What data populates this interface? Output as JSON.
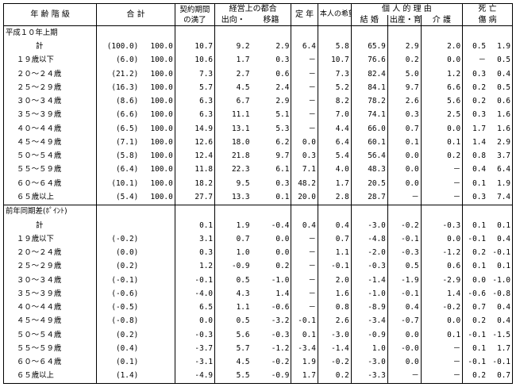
{
  "header": {
    "age_class": "年 齢 階 級",
    "total": "合    計",
    "contract_end": "契約期間の満了",
    "business": "経営上の都合",
    "business_sub1": "出向・",
    "business_sub2": "移籍",
    "retire": "定 年",
    "self_request": "本人の希望",
    "personal": "個 人 的 理 由",
    "marriage": "結 婚",
    "childbirth": "出産・育児",
    "care": "介 護",
    "death": "死 亡",
    "injury": "傷 病"
  },
  "section1": {
    "title": "平成１０年上期",
    "rows": [
      {
        "label": "計",
        "share": "(100.0)",
        "total": "100.0",
        "c1": "10.7",
        "c2": "9.2",
        "c3": "2.9",
        "c4": "6.4",
        "c5": "5.8",
        "c6": "65.9",
        "c7": "2.9",
        "c8": "2.0",
        "c9": "0.5",
        "c10": "1.9"
      },
      {
        "label": "１９歳以下",
        "share": "(6.0)",
        "total": "100.0",
        "c1": "10.6",
        "c2": "1.7",
        "c3": "0.3",
        "c4": "－",
        "c5": "10.7",
        "c6": "76.6",
        "c7": "0.2",
        "c8": "0.0",
        "c9": "－",
        "c10": "0.5"
      },
      {
        "label": "２０～２４歳",
        "share": "(21.2)",
        "total": "100.0",
        "c1": "7.3",
        "c2": "2.7",
        "c3": "0.6",
        "c4": "－",
        "c5": "7.3",
        "c6": "82.4",
        "c7": "5.0",
        "c8": "1.2",
        "c9": "0.3",
        "c10": "0.4"
      },
      {
        "label": "２５～２９歳",
        "share": "(16.3)",
        "total": "100.0",
        "c1": "5.7",
        "c2": "4.5",
        "c3": "2.4",
        "c4": "－",
        "c5": "5.2",
        "c6": "84.1",
        "c7": "9.7",
        "c8": "6.6",
        "c9": "0.2",
        "c10": "0.5"
      },
      {
        "label": "３０～３４歳",
        "share": "(8.6)",
        "total": "100.0",
        "c1": "6.3",
        "c2": "6.7",
        "c3": "2.9",
        "c4": "－",
        "c5": "8.2",
        "c6": "78.2",
        "c7": "2.6",
        "c8": "5.6",
        "c9": "0.2",
        "c10": "0.6"
      },
      {
        "label": "３５～３９歳",
        "share": "(6.6)",
        "total": "100.0",
        "c1": "6.3",
        "c2": "11.1",
        "c3": "5.1",
        "c4": "－",
        "c5": "7.0",
        "c6": "74.1",
        "c7": "0.3",
        "c8": "2.5",
        "c9": "0.3",
        "c10": "1.6"
      },
      {
        "label": "４０～４４歳",
        "share": "(6.5)",
        "total": "100.0",
        "c1": "14.9",
        "c2": "13.1",
        "c3": "5.3",
        "c4": "－",
        "c5": "4.4",
        "c6": "66.0",
        "c7": "0.7",
        "c8": "0.0",
        "c9": "1.7",
        "c10": "1.6"
      },
      {
        "label": "４５～４９歳",
        "share": "(7.1)",
        "total": "100.0",
        "c1": "12.6",
        "c2": "18.0",
        "c3": "6.2",
        "c4": "0.0",
        "c5": "6.4",
        "c6": "60.1",
        "c7": "0.1",
        "c8": "0.1",
        "c9": "1.4",
        "c10": "2.9"
      },
      {
        "label": "５０～５４歳",
        "share": "(5.8)",
        "total": "100.0",
        "c1": "12.4",
        "c2": "21.8",
        "c3": "9.7",
        "c4": "0.3",
        "c5": "5.4",
        "c6": "56.4",
        "c7": "0.0",
        "c8": "0.2",
        "c9": "0.8",
        "c10": "3.7"
      },
      {
        "label": "５５～５９歳",
        "share": "(6.4)",
        "total": "100.0",
        "c1": "11.8",
        "c2": "22.3",
        "c3": "6.1",
        "c4": "7.1",
        "c5": "4.0",
        "c6": "48.3",
        "c7": "0.0",
        "c8": "－",
        "c9": "0.4",
        "c10": "6.4"
      },
      {
        "label": "６０～６４歳",
        "share": "(10.1)",
        "total": "100.0",
        "c1": "18.2",
        "c2": "9.5",
        "c3": "0.3",
        "c4": "48.2",
        "c5": "1.7",
        "c6": "20.5",
        "c7": "0.0",
        "c8": "－",
        "c9": "0.1",
        "c10": "1.9"
      },
      {
        "label": "６５歳以上",
        "share": "(5.4)",
        "total": "100.0",
        "c1": "27.7",
        "c2": "13.3",
        "c3": "0.1",
        "c4": "20.0",
        "c5": "2.8",
        "c6": "28.7",
        "c7": "－",
        "c8": "－",
        "c9": "0.3",
        "c10": "7.4"
      }
    ]
  },
  "section2": {
    "title": "前年同期差(ﾎﾟｲﾝﾄ)",
    "rows": [
      {
        "label": "計",
        "share": "",
        "c1": "0.1",
        "c2": "1.9",
        "c3": "-0.4",
        "c4": "0.4",
        "c5": "0.4",
        "c6": "-3.0",
        "c7": "-0.2",
        "c8": "-0.3",
        "c9": "0.1",
        "c10": "0.1"
      },
      {
        "label": "１９歳以下",
        "share": "(-0.2)",
        "c1": "3.1",
        "c2": "0.7",
        "c3": "0.0",
        "c4": "－",
        "c5": "0.7",
        "c6": "-4.8",
        "c7": "-0.1",
        "c8": "0.0",
        "c9": "-0.1",
        "c10": "0.4"
      },
      {
        "label": "２０～２４歳",
        "share": "(0.0)",
        "c1": "0.3",
        "c2": "1.0",
        "c3": "0.0",
        "c4": "－",
        "c5": "1.1",
        "c6": "-2.0",
        "c7": "-0.3",
        "c8": "-1.2",
        "c9": "0.2",
        "c10": "-0.1"
      },
      {
        "label": "２５～２９歳",
        "share": "(0.2)",
        "c1": "1.2",
        "c2": "-0.9",
        "c3": "0.2",
        "c4": "－",
        "c5": "-0.1",
        "c6": "-0.3",
        "c7": "0.5",
        "c8": "0.6",
        "c9": "0.1",
        "c10": "0.1"
      },
      {
        "label": "３０～３４歳",
        "share": "(-0.1)",
        "c1": "-0.1",
        "c2": "0.5",
        "c3": "-1.0",
        "c4": "－",
        "c5": "2.0",
        "c6": "-1.4",
        "c7": "-1.9",
        "c8": "-2.9",
        "c9": "0.0",
        "c10": "-1.0"
      },
      {
        "label": "３５～３９歳",
        "share": "(-0.6)",
        "c1": "-4.0",
        "c2": "4.3",
        "c3": "1.4",
        "c4": "－",
        "c5": "1.6",
        "c6": "-1.0",
        "c7": "-0.1",
        "c8": "1.4",
        "c9": "-0.6",
        "c10": "-0.8"
      },
      {
        "label": "４０～４４歳",
        "share": "(-0.5)",
        "c1": "6.5",
        "c2": "1.1",
        "c3": "-0.6",
        "c4": "－",
        "c5": "0.8",
        "c6": "-8.9",
        "c7": "0.4",
        "c8": "-0.2",
        "c9": "0.7",
        "c10": "0.4"
      },
      {
        "label": "４５～４９歳",
        "share": "(-0.8)",
        "c1": "0.0",
        "c2": "0.5",
        "c3": "-3.2",
        "c4": "-0.1",
        "c5": "2.6",
        "c6": "-3.4",
        "c7": "-0.7",
        "c8": "0.0",
        "c9": "0.2",
        "c10": "0.4"
      },
      {
        "label": "５０～５４歳",
        "share": "(0.2)",
        "c1": "-0.3",
        "c2": "5.6",
        "c3": "-0.3",
        "c4": "0.1",
        "c5": "-3.0",
        "c6": "-0.9",
        "c7": "0.0",
        "c8": "0.1",
        "c9": "-0.1",
        "c10": "-1.5"
      },
      {
        "label": "５５～５９歳",
        "share": "(0.4)",
        "c1": "-3.7",
        "c2": "5.7",
        "c3": "-1.2",
        "c4": "-3.4",
        "c5": "-1.4",
        "c6": "1.0",
        "c7": "-0.0",
        "c8": "－",
        "c9": "0.1",
        "c10": "1.7"
      },
      {
        "label": "６０～６４歳",
        "share": "(0.1)",
        "c1": "-3.1",
        "c2": "4.5",
        "c3": "-0.2",
        "c4": "1.9",
        "c5": "-0.2",
        "c6": "-3.0",
        "c7": "0.0",
        "c8": "－",
        "c9": "-0.1",
        "c10": "-0.1"
      },
      {
        "label": "６５歳以上",
        "share": "(1.4)",
        "c1": "-4.9",
        "c2": "5.5",
        "c3": "-0.9",
        "c4": "1.7",
        "c5": "0.2",
        "c6": "-3.3",
        "c7": "－",
        "c8": "－",
        "c9": "0.2",
        "c10": "0.7"
      }
    ]
  }
}
